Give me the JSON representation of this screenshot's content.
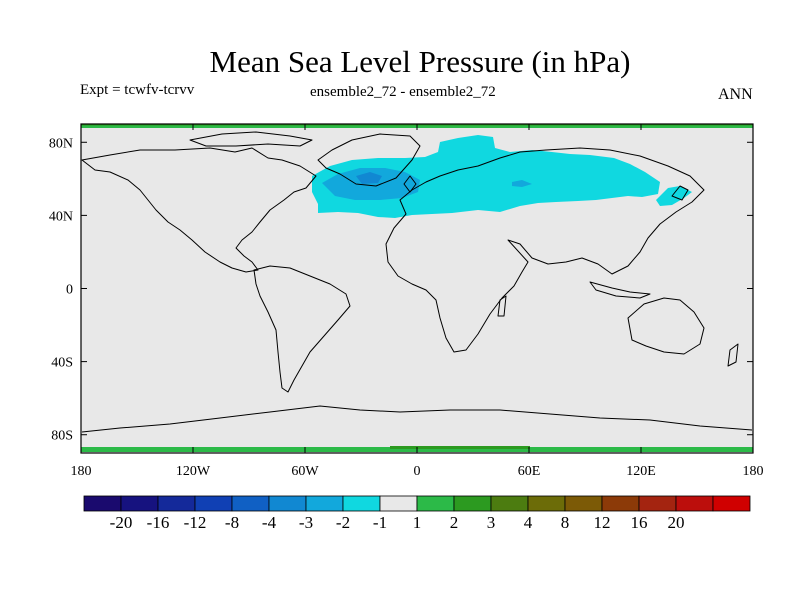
{
  "chart_data": {
    "type": "heatmap",
    "title": "Mean Sea Level Pressure (in hPa)",
    "experiment_label": "Expt = tcwfv-tcrvv",
    "comparison_label": "ensemble2_72 - ensemble2_72",
    "period_label": "ANN",
    "x_ticks": [
      {
        "value": -180,
        "label": "180"
      },
      {
        "value": -120,
        "label": "120W"
      },
      {
        "value": -60,
        "label": "60W"
      },
      {
        "value": 0,
        "label": "0"
      },
      {
        "value": 60,
        "label": "60E"
      },
      {
        "value": 120,
        "label": "120E"
      },
      {
        "value": 180,
        "label": "180"
      }
    ],
    "y_ticks": [
      {
        "value": 80,
        "label": "80N"
      },
      {
        "value": 40,
        "label": "40N"
      },
      {
        "value": 0,
        "label": "0"
      },
      {
        "value": -40,
        "label": "40S"
      },
      {
        "value": -80,
        "label": "80S"
      }
    ],
    "xlim": [
      -180,
      180
    ],
    "ylim": [
      -90,
      90
    ],
    "colorbar": {
      "colors": [
        "#1a0a6e",
        "#16127f",
        "#14299a",
        "#1040b4",
        "#1060c4",
        "#1188d2",
        "#12a8dc",
        "#10d8e0",
        "#e8e8e8",
        "#2cba48",
        "#2c9a20",
        "#4c7c10",
        "#6c6c08",
        "#7c5a06",
        "#8c3a08",
        "#a42410",
        "#bc0e0c",
        "#d00000"
      ],
      "labels": [
        "-20",
        "-16",
        "-12",
        "-8",
        "-4",
        "-3",
        "-2",
        "-1",
        "1",
        "2",
        "3",
        "4",
        "8",
        "12",
        "16",
        "20"
      ]
    },
    "background_value_range": "-1 to 1",
    "anomaly_regions": [
      {
        "name": "north-atlantic-eurasia-band",
        "range": "-2 to -1",
        "color": "#10d8e0"
      },
      {
        "name": "north-atlantic-core",
        "range": "-3 to -2",
        "color": "#12a8dc"
      },
      {
        "name": "atlantic-minimum",
        "range": "-4 to -3",
        "color": "#1188d2"
      },
      {
        "name": "arctic-edge-band",
        "range": "1 to 2",
        "color": "#2cba48"
      },
      {
        "name": "antarctic-edge-band",
        "range": "1 to 2",
        "color": "#2cba48"
      }
    ]
  }
}
